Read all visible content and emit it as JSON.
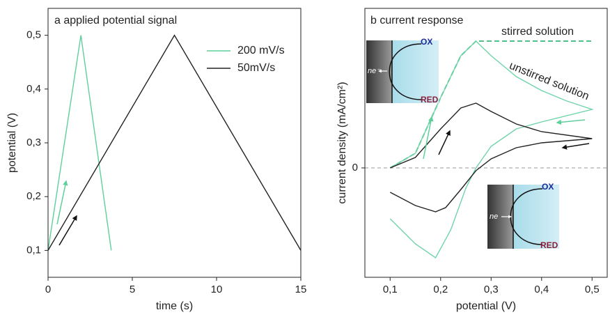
{
  "chart_data": [
    {
      "type": "line",
      "title": "a  applied potential signal",
      "x_label": "time (s)",
      "y_label": "potential (V)",
      "xlim": [
        0,
        15
      ],
      "ylim": [
        0.05,
        0.55
      ],
      "xticks": [
        0,
        5,
        10,
        15
      ],
      "yticks": [
        {
          "value": 0.1,
          "label": "0,1"
        },
        {
          "value": 0.2,
          "label": "0,2"
        },
        {
          "value": 0.3,
          "label": "0,3"
        },
        {
          "value": 0.4,
          "label": "0,4"
        },
        {
          "value": 0.5,
          "label": "0,5"
        }
      ],
      "legend": "upper right",
      "series": [
        {
          "name": "200 mV/s",
          "color": "#5fcf9c",
          "x": [
            0,
            1.95,
            3.75
          ],
          "values": [
            0.1,
            0.5,
            0.1
          ]
        },
        {
          "name": "50mV/s",
          "color": "#222222",
          "x": [
            0,
            7.5,
            15
          ],
          "values": [
            0.1,
            0.5,
            0.1
          ]
        }
      ]
    },
    {
      "type": "line",
      "title": "b  current response",
      "x_label": "potential (V)",
      "y_label": "current density (mA/cm²)",
      "xlim": [
        0.05,
        0.53
      ],
      "ylim": [
        -1.57,
        2.29
      ],
      "xticks": [
        {
          "value": 0.1,
          "label": "0,1"
        },
        {
          "value": 0.2,
          "label": "0,2"
        },
        {
          "value": 0.3,
          "label": "0,3"
        },
        {
          "value": 0.4,
          "label": "0,4"
        },
        {
          "value": 0.5,
          "label": "0,5"
        }
      ],
      "yticks": [
        0
      ],
      "grid": true,
      "series": [
        {
          "name": "stirred solution",
          "color": "#4fbf8c",
          "dashed": true,
          "x": [
            0.1,
            0.15,
            0.2,
            0.24,
            0.27,
            0.5
          ],
          "values": [
            0,
            0.21,
            1.01,
            1.61,
            1.82,
            1.82
          ]
        },
        {
          "name": "unstirred solution",
          "color": "#6fd4a8",
          "x": [
            0.1,
            0.15,
            0.2,
            0.24,
            0.27,
            0.3,
            0.35,
            0.4,
            0.45,
            0.5,
            0.4,
            0.35,
            0.3,
            0.27,
            0.25,
            0.22,
            0.19,
            0.15,
            0.1
          ],
          "values": [
            0,
            0.21,
            1.01,
            1.61,
            1.82,
            1.61,
            1.31,
            1.11,
            0.96,
            0.84,
            0.66,
            0.56,
            0.31,
            0,
            -0.29,
            -0.89,
            -1.29,
            -1.09,
            -0.73
          ]
        },
        {
          "color": "#222222",
          "x": [
            0.1,
            0.15,
            0.2,
            0.24,
            0.27,
            0.3,
            0.35,
            0.4,
            0.5,
            0.4,
            0.35,
            0.3,
            0.27,
            0.24,
            0.21,
            0.19,
            0.15,
            0.1
          ],
          "values": [
            0,
            0.15,
            0.56,
            0.86,
            0.93,
            0.81,
            0.63,
            0.52,
            0.42,
            0.36,
            0.29,
            0.13,
            -0.04,
            -0.31,
            -0.57,
            -0.63,
            -0.54,
            -0.35
          ]
        }
      ],
      "insets": [
        {
          "ox": "OX",
          "red": "RED",
          "electron": "ne⁻"
        },
        {
          "ox": "OX",
          "red": "RED",
          "electron": "ne"
        }
      ]
    }
  ]
}
